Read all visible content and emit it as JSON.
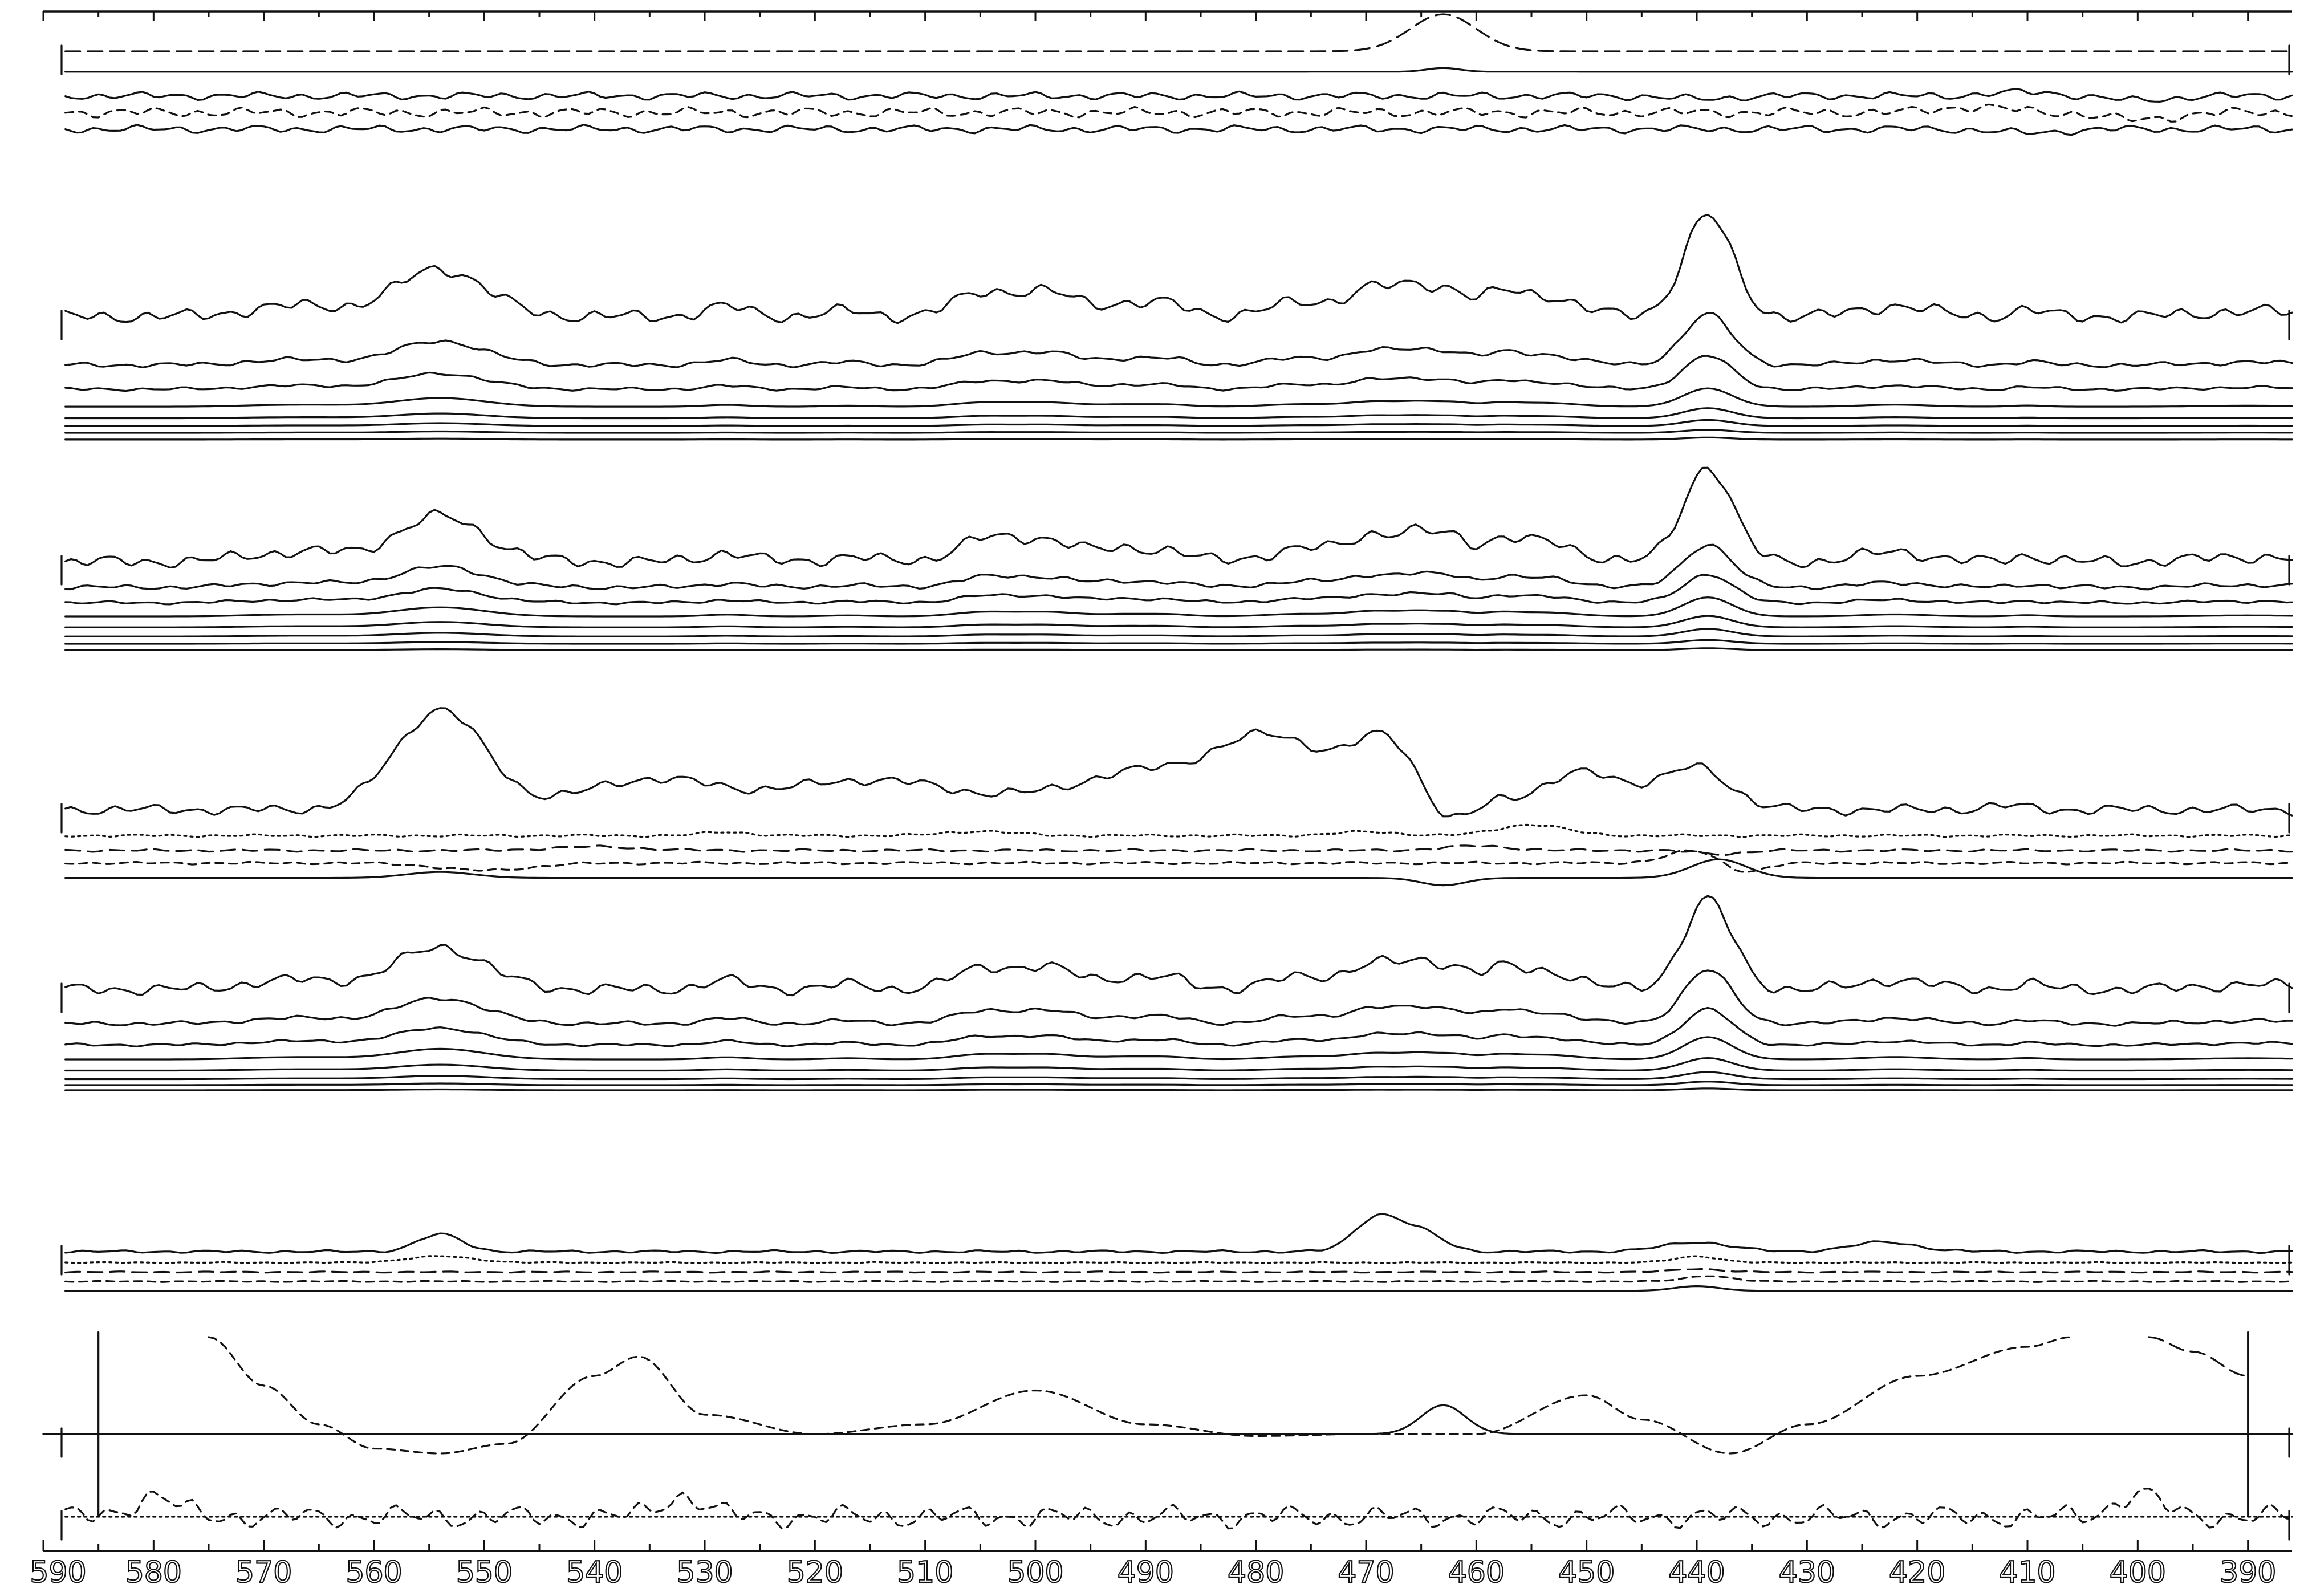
{
  "colors": {
    "ink": "#111111",
    "background": "#ffffff"
  },
  "chart_data": {
    "type": "line",
    "x_unit": "",
    "xlim": [
      590,
      386
    ],
    "x_reversed": true,
    "xticks": [
      590,
      580,
      570,
      560,
      550,
      540,
      530,
      520,
      510,
      500,
      490,
      480,
      470,
      460,
      450,
      440,
      430,
      420,
      410,
      400,
      390
    ],
    "tick_labels": [
      "590",
      "580",
      "570",
      "560",
      "550",
      "540",
      "530",
      "520",
      "510",
      "500",
      "490",
      "480",
      "470",
      "460",
      "450",
      "440",
      "430",
      "420",
      "410",
      "400",
      "390"
    ],
    "grid": false,
    "legend": "none",
    "panels": [
      {
        "series": [
          {
            "style": "dashed",
            "baseline": 0.0,
            "amp": 0.0,
            "peaks": [
              [
                463,
                1.0,
                3
              ]
            ],
            "ripple": 0.0
          },
          {
            "style": "solid",
            "baseline": -0.55,
            "amp": 0.0,
            "peaks": [
              [
                463,
                0.1,
                1.5
              ]
            ],
            "ripple": 0.0
          },
          {
            "style": "solid",
            "baseline": -1.2,
            "amp": 0.0,
            "peaks": [
              [
                440,
                -0.08,
                3
              ],
              [
                410,
                0.1,
                3
              ],
              [
                400,
                -0.12,
                3
              ]
            ],
            "ripple": 0.12
          },
          {
            "style": "dashed",
            "baseline": -1.65,
            "amp": 0.0,
            "peaks": [
              [
                415,
                0.15,
                3
              ],
              [
                400,
                -0.2,
                3
              ]
            ],
            "ripple": 0.15
          },
          {
            "style": "solid",
            "baseline": -2.1,
            "amp": 0.0,
            "peaks": [
              [
                410,
                -0.1,
                3
              ]
            ],
            "ripple": 0.12
          }
        ]
      },
      {
        "series": [
          {
            "style": "solid",
            "baseline": 0.0,
            "amp": 1.0,
            "ripple": 0.08
          },
          {
            "style": "solid",
            "baseline": -0.5,
            "amp": 0.5,
            "ripple": 0.03
          },
          {
            "style": "solid",
            "baseline": -0.75,
            "amp": 0.33,
            "ripple": 0.02
          },
          {
            "style": "solid",
            "baseline": -0.93,
            "amp": 0.18,
            "ripple": 0.0
          },
          {
            "style": "solid",
            "baseline": -1.05,
            "amp": 0.1,
            "ripple": 0.0
          },
          {
            "style": "solid",
            "baseline": -1.13,
            "amp": 0.06,
            "ripple": 0.0
          },
          {
            "style": "solid",
            "baseline": -1.2,
            "amp": 0.03,
            "ripple": 0.0
          },
          {
            "style": "solid",
            "baseline": -1.27,
            "amp": 0.02,
            "ripple": 0.0
          }
        ]
      },
      {
        "series": [
          {
            "style": "solid",
            "baseline": 0.0,
            "amp": 1.0,
            "ripple": 0.08
          },
          {
            "style": "solid",
            "baseline": -0.28,
            "amp": 0.45,
            "ripple": 0.03
          },
          {
            "style": "solid",
            "baseline": -0.45,
            "amp": 0.3,
            "ripple": 0.02
          },
          {
            "style": "solid",
            "baseline": -0.6,
            "amp": 0.2,
            "ripple": 0.0
          },
          {
            "style": "solid",
            "baseline": -0.72,
            "amp": 0.12,
            "ripple": 0.0
          },
          {
            "style": "solid",
            "baseline": -0.82,
            "amp": 0.08,
            "ripple": 0.0
          },
          {
            "style": "solid",
            "baseline": -0.9,
            "amp": 0.04,
            "ripple": 0.0
          },
          {
            "style": "solid",
            "baseline": -0.97,
            "amp": 0.02,
            "ripple": 0.0
          }
        ]
      },
      {
        "series": [
          {
            "style": "solid",
            "baseline": 0.0,
            "amp": 0.0,
            "peaks": [
              [
                554,
                1.35,
                4
              ],
              [
                535,
                0.4,
                6
              ],
              [
                515,
                0.4,
                8
              ],
              [
                490,
                0.5,
                7
              ],
              [
                478,
                0.9,
                5
              ],
              [
                468,
                0.9,
                3
              ],
              [
                463,
                -0.3,
                2
              ],
              [
                458,
                0.1,
                1.5
              ],
              [
                450,
                0.5,
                4
              ],
              [
                440,
                0.55,
                3
              ],
              [
                412,
                0.05,
                2
              ]
            ],
            "ripple": 0.08
          },
          {
            "style": "dotted",
            "baseline": -0.35,
            "amp": 0.0,
            "peaks": [
              [
                528,
                0.05,
                2
              ],
              [
                505,
                0.06,
                3
              ],
              [
                470,
                0.05,
                3
              ],
              [
                455,
                0.15,
                3
              ]
            ],
            "ripple": 0.02
          },
          {
            "style": "dashed",
            "baseline": -0.55,
            "amp": 0.0,
            "peaks": [
              [
                540,
                0.05,
                4
              ],
              [
                460,
                0.06,
                3
              ],
              [
                438,
                -0.05,
                2
              ]
            ],
            "ripple": 0.02
          },
          {
            "style": "dashed",
            "baseline": -0.72,
            "amp": 0.0,
            "peaks": [
              [
                550,
                -0.1,
                4
              ],
              [
                440,
                0.18,
                2.5
              ],
              [
                436,
                -0.15,
                2
              ]
            ],
            "ripple": 0.02
          },
          {
            "style": "solid",
            "baseline": -0.92,
            "amp": 0.0,
            "peaks": [
              [
                554,
                0.08,
                3
              ],
              [
                463,
                -0.1,
                2
              ],
              [
                438,
                0.25,
                2.5
              ]
            ],
            "ripple": 0.0
          }
        ]
      },
      {
        "series": [
          {
            "style": "solid",
            "baseline": 0.0,
            "amp": 1.0,
            "ripple": 0.08
          },
          {
            "style": "solid",
            "baseline": -0.4,
            "amp": 0.6,
            "ripple": 0.03
          },
          {
            "style": "solid",
            "baseline": -0.65,
            "amp": 0.4,
            "ripple": 0.02
          },
          {
            "style": "solid",
            "baseline": -0.82,
            "amp": 0.25,
            "ripple": 0.0
          },
          {
            "style": "solid",
            "baseline": -0.95,
            "amp": 0.14,
            "ripple": 0.0
          },
          {
            "style": "solid",
            "baseline": -1.05,
            "amp": 0.08,
            "ripple": 0.0
          },
          {
            "style": "solid",
            "baseline": -1.12,
            "amp": 0.04,
            "ripple": 0.0
          },
          {
            "style": "solid",
            "baseline": -1.18,
            "amp": 0.02,
            "ripple": 0.0
          }
        ]
      },
      {
        "series": [
          {
            "style": "solid",
            "baseline": 0.0,
            "amp": 0.0,
            "peaks": [
              [
                554,
                0.55,
                2
              ],
              [
                469,
                1.1,
                2
              ],
              [
                465,
                0.6,
                2
              ],
              [
                440,
                0.3,
                3
              ],
              [
                423,
                0.3,
                3
              ]
            ],
            "ripple": 0.05
          },
          {
            "style": "dotted",
            "baseline": -0.35,
            "amp": 0.0,
            "peaks": [
              [
                554,
                0.2,
                3
              ],
              [
                440,
                0.2,
                2
              ]
            ],
            "ripple": 0.02
          },
          {
            "style": "dashed",
            "baseline": -0.65,
            "amp": 0.0,
            "peaks": [
              [
                440,
                0.1,
                2
              ]
            ],
            "ripple": 0.02
          },
          {
            "style": "dashed",
            "baseline": -0.95,
            "amp": 0.0,
            "peaks": [
              [
                439,
                0.18,
                2
              ]
            ],
            "ripple": 0.02
          },
          {
            "style": "solid",
            "baseline": -1.25,
            "amp": 0.0,
            "peaks": [
              [
                440,
                0.15,
                2
              ]
            ],
            "ripple": 0.0
          }
        ]
      },
      {
        "series": [
          {
            "style": "solid",
            "baseline": 0.0,
            "amp": 0.0,
            "peaks": [
              [
                463,
                0.3,
                2
              ]
            ],
            "ripple": 0.0,
            "xrange": [
              590,
              386
            ]
          },
          {
            "style": "dashed",
            "baseline": 0.0,
            "amp": 0.0,
            "points": [
              [
                575,
                1.0
              ],
              [
                570,
                0.5
              ],
              [
                565,
                0.1
              ],
              [
                560,
                -0.15
              ],
              [
                554,
                -0.2
              ],
              [
                548,
                -0.1
              ],
              [
                540,
                0.6
              ],
              [
                536,
                0.8
              ],
              [
                530,
                0.2
              ],
              [
                520,
                0.0
              ],
              [
                510,
                0.1
              ],
              [
                500,
                0.45
              ],
              [
                490,
                0.1
              ],
              [
                480,
                -0.02
              ],
              [
                470,
                0.0
              ],
              [
                460,
                0.0
              ],
              [
                450,
                0.4
              ],
              [
                445,
                0.15
              ],
              [
                437,
                -0.2
              ],
              [
                430,
                0.1
              ],
              [
                420,
                0.6
              ],
              [
                410,
                0.9
              ],
              [
                406,
                1.0
              ]
            ],
            "ripple": 0.0,
            "xrange": [
              575,
              406
            ]
          },
          {
            "style": "dashed",
            "baseline": 0.0,
            "amp": 0.0,
            "points": [
              [
                399,
                1.0
              ],
              [
                395,
                0.85
              ],
              [
                390,
                0.6
              ]
            ],
            "ripple": 0.0,
            "xrange": [
              399,
              390
            ]
          },
          {
            "style": "solid-vertical",
            "x": 585,
            "from": -0.85,
            "to": 1.05
          },
          {
            "style": "solid-vertical",
            "x": 390,
            "from": -0.85,
            "to": 1.05
          }
        ]
      },
      {
        "series": [
          {
            "style": "dotted",
            "baseline": 0.0,
            "amp": 0.0,
            "ripple": 0.0
          },
          {
            "style": "dashed",
            "baseline": 0.0,
            "amp": 0.0,
            "ripple": 0.5,
            "peaks": [
              [
                580,
                0.8,
                2
              ],
              [
                532,
                0.8,
                2
              ],
              [
                400,
                0.9,
                2
              ]
            ]
          }
        ]
      }
    ],
    "reference_peaks_nm": [
      554,
      528,
      505,
      499,
      469,
      465,
      463,
      455,
      439,
      410
    ]
  }
}
